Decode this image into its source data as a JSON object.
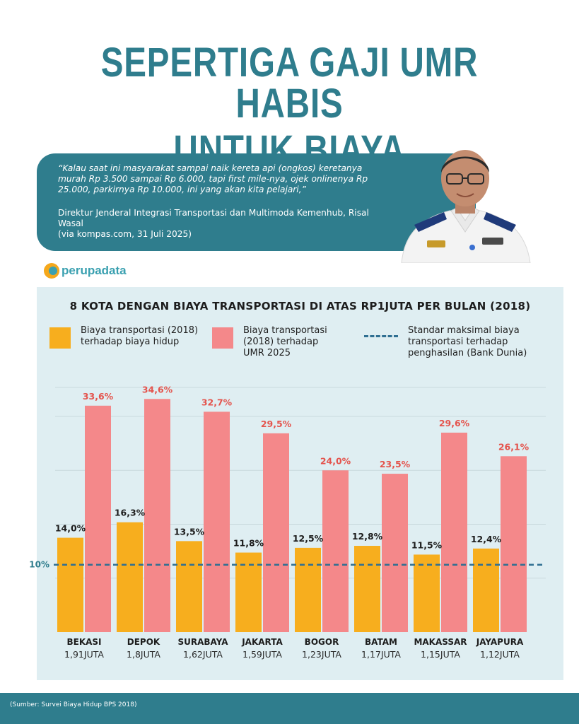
{
  "headline": {
    "line1": "SEPERTIGA GAJI UMR HABIS",
    "line2": "UNTUK BIAYA TRANSPORTASI"
  },
  "quote": {
    "text": "“Kalau saat ini masyarakat sampai naik kereta api (ongkos) keretanya murah Rp 3.500 sampai Rp 6.000, tapi first mile-nya, ojek onlinenya Rp 25.000, parkirnya Rp 10.000, ini yang akan kita pelajari,”",
    "attribution_line1": "Direktur Jenderal Integrasi Transportasi dan Multimoda Kemenhub, Risal Wasal",
    "attribution_line2": "(via kompas.com, 31 Juli 2025)"
  },
  "brand": {
    "name": "perupadata"
  },
  "legend": {
    "item1": "Biaya transportasi (2018) terhadap biaya hidup",
    "item1_a": "Biaya transportasi (2018)",
    "item1_b": "terhadap biaya hidup",
    "item2_a": "Biaya transportasi",
    "item2_b": "(2018) terhadap",
    "item2_c": "UMR 2025",
    "item3_a": "Standar maksimal biaya",
    "item3_b": "transportasi terhadap",
    "item3_c": "penghasilan (Bank Dunia)"
  },
  "colors": {
    "accent": "#2f7d8d",
    "series_living_cost": "#f7ae1e",
    "series_umr": "#f4888a",
    "reference_line": "#2f6f92",
    "umr_label": "#e4544d"
  },
  "chart_data": {
    "type": "bar",
    "title": "8 KOTA DENGAN BIAYA TRANSPORTASI DI ATAS RP1JUTA PER BULAN (2018)",
    "categories": [
      "BEKASI",
      "DEPOK",
      "SURABAYA",
      "JAKARTA",
      "BOGOR",
      "BATAM",
      "MAKASSAR",
      "JAYAPURA"
    ],
    "category_sublabels": [
      "1,91JUTA",
      "1,8JUTA",
      "1,62JUTA",
      "1,59JUTA",
      "1,23JUTA",
      "1,17JUTA",
      "1,15JUTA",
      "1,12JUTA"
    ],
    "series": [
      {
        "values": [
          14.0,
          16.3,
          13.5,
          11.8,
          12.5,
          12.8,
          11.5,
          12.4
        ],
        "labels": [
          "14,0%",
          "16,3%",
          "13,5%",
          "11,8%",
          "12,5%",
          "12,8%",
          "11,5%",
          "12,4%"
        ]
      },
      {
        "values": [
          33.6,
          34.6,
          32.7,
          29.5,
          24.0,
          23.5,
          29.6,
          26.1
        ],
        "labels": [
          "33,6%",
          "34,6%",
          "32,7%",
          "29,5%",
          "24,0%",
          "23,5%",
          "29,6%",
          "26,1%"
        ]
      }
    ],
    "reference_line": {
      "value": 10,
      "label": "10%"
    },
    "ylim": [
      0,
      36
    ],
    "grid": true
  },
  "source": "(Sumber: Survei Biaya Hidup BPS 2018)"
}
